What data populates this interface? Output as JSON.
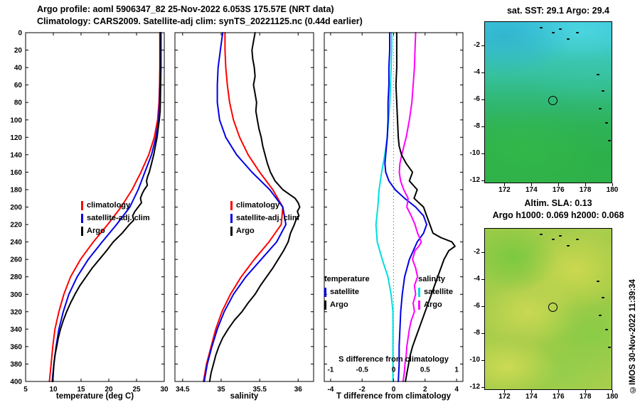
{
  "header": {
    "line1": "Argo profile: aoml 5906347_82 25-Nov-2022 6.053S 175.57E (NRT data)",
    "line2": "Climatology: CARS2009. Satellite-adj clim: synTS_20221125.nc (0.44d earlier)"
  },
  "copyright": "©IMOS 30-Nov-2022 11:39:34",
  "colors": {
    "climatology": "#ff0000",
    "satellite": "#0000e6",
    "argo": "#000000",
    "s_satellite": "#00dede",
    "s_argo": "#ff00ff",
    "axis": "#000000",
    "sst_top": "#3fcbdd",
    "sst_bottom": "#2db04b",
    "sla_base": "#a3cc49"
  },
  "maps": {
    "sst": {
      "title": "sat. SST: 29.1 Argo: 29.4",
      "xlim": [
        170.5,
        180.0
      ],
      "ylim": [
        -0.2,
        -12.2
      ],
      "xticks": [
        "172",
        "174",
        "176",
        "178",
        "180"
      ],
      "yticks": [
        "-2",
        "-4",
        "-6",
        "-8",
        "-10",
        "-12"
      ],
      "marker": {
        "lon": 175.57,
        "lat": -6.053
      },
      "islands": [
        [
          0.43,
          0.03
        ],
        [
          0.52,
          0.06
        ],
        [
          0.58,
          0.04
        ],
        [
          0.64,
          0.1
        ],
        [
          0.71,
          0.06
        ],
        [
          0.87,
          0.32
        ],
        [
          0.91,
          0.42
        ],
        [
          0.89,
          0.53
        ],
        [
          0.94,
          0.62
        ],
        [
          0.96,
          0.73
        ]
      ]
    },
    "sla": {
      "title1": "Altim. SLA: 0.13",
      "title2": "Argo h1000: 0.069 h2000: 0.068",
      "xlim": [
        170.5,
        180.0
      ],
      "ylim": [
        -0.2,
        -12.2
      ],
      "xticks": [
        "172",
        "174",
        "176",
        "178",
        "180"
      ],
      "yticks": [
        "-2",
        "-4",
        "-6",
        "-8",
        "-10",
        "-12"
      ],
      "marker": {
        "lon": 175.57,
        "lat": -6.053
      },
      "islands": [
        [
          0.43,
          0.03
        ],
        [
          0.52,
          0.06
        ],
        [
          0.58,
          0.04
        ],
        [
          0.64,
          0.1
        ],
        [
          0.71,
          0.06
        ],
        [
          0.87,
          0.32
        ],
        [
          0.91,
          0.42
        ],
        [
          0.89,
          0.53
        ],
        [
          0.94,
          0.62
        ],
        [
          0.96,
          0.73
        ]
      ]
    }
  },
  "chart_data": [
    {
      "type": "line",
      "xlabel": "temperature (deg C)",
      "xlim": [
        5,
        30
      ],
      "ylim": [
        0,
        400
      ],
      "xticks": [
        5,
        10,
        15,
        20,
        25,
        30
      ],
      "xtick_labels": [
        "5",
        "10",
        "15",
        "20",
        "25",
        "30"
      ],
      "yticks": [
        0,
        20,
        40,
        60,
        80,
        100,
        120,
        140,
        160,
        180,
        200,
        220,
        240,
        260,
        280,
        300,
        320,
        340,
        360,
        380,
        400
      ],
      "show_ylabels": true,
      "legend": [
        "climatology",
        "satellite-adj. clim",
        "Argo"
      ],
      "series": [
        {
          "id": "climatology",
          "name": "climatology",
          "color_key": "climatology",
          "axis": "T",
          "depths": [
            0,
            20,
            40,
            60,
            80,
            100,
            120,
            140,
            160,
            180,
            200,
            220,
            240,
            260,
            280,
            300,
            320,
            340,
            360,
            380,
            400
          ],
          "values": [
            29.2,
            29.2,
            29.2,
            29.15,
            29.05,
            28.8,
            28.2,
            27.2,
            25.8,
            24.2,
            22.2,
            19.8,
            17.2,
            14.9,
            13.1,
            11.9,
            11.0,
            10.3,
            9.9,
            9.6,
            9.3
          ]
        },
        {
          "id": "satellite-adj-clim",
          "name": "satellite-adj. clim",
          "color_key": "satellite",
          "axis": "T",
          "depths": [
            0,
            20,
            40,
            60,
            80,
            100,
            120,
            140,
            160,
            180,
            200,
            220,
            240,
            260,
            280,
            300,
            320,
            340,
            360,
            380,
            400
          ],
          "values": [
            29.25,
            29.25,
            29.25,
            29.2,
            29.15,
            29.0,
            28.5,
            27.7,
            26.5,
            25.3,
            23.8,
            21.4,
            18.8,
            16.3,
            14.3,
            12.8,
            11.8,
            11.0,
            10.5,
            10.1,
            9.8
          ]
        },
        {
          "id": "argo",
          "name": "Argo",
          "color_key": "argo",
          "axis": "T",
          "depths": [
            0,
            20,
            40,
            60,
            80,
            90,
            100,
            110,
            120,
            130,
            140,
            150,
            160,
            165,
            170,
            175,
            180,
            185,
            190,
            195,
            200,
            205,
            210,
            215,
            220,
            230,
            240,
            250,
            260,
            270,
            280,
            290,
            300,
            310,
            320,
            330,
            340,
            350,
            360,
            370,
            380,
            390,
            400
          ],
          "values": [
            29.4,
            29.4,
            29.4,
            29.35,
            29.3,
            29.25,
            29.1,
            28.9,
            28.7,
            28.4,
            28.1,
            27.7,
            27.3,
            27.0,
            26.8,
            26.95,
            26.4,
            26.0,
            25.7,
            25.9,
            25.3,
            24.7,
            24.3,
            24.5,
            23.7,
            22.4,
            20.8,
            19.6,
            18.3,
            17.0,
            15.9,
            14.8,
            13.9,
            13.1,
            12.4,
            11.8,
            11.3,
            10.9,
            10.6,
            10.3,
            10.1,
            10.0,
            9.9
          ]
        }
      ]
    },
    {
      "type": "line",
      "xlabel": "salinity",
      "xlim": [
        34.4,
        36.2
      ],
      "ylim": [
        0,
        400
      ],
      "xticks": [
        34.5,
        35,
        35.5,
        36
      ],
      "xtick_labels": [
        "34.5",
        "35",
        "35.5",
        "36"
      ],
      "yticks": [
        0,
        20,
        40,
        60,
        80,
        100,
        120,
        140,
        160,
        180,
        200,
        220,
        240,
        260,
        280,
        300,
        320,
        340,
        360,
        380,
        400
      ],
      "show_ylabels": false,
      "legend": [
        "climatology",
        "satellite-adj. clim",
        "Argo"
      ],
      "series": [
        {
          "id": "climatology",
          "name": "climatology",
          "color_key": "climatology",
          "axis": "T",
          "depths": [
            0,
            20,
            40,
            60,
            80,
            100,
            120,
            140,
            160,
            180,
            200,
            220,
            240,
            260,
            280,
            300,
            320,
            340,
            360,
            380,
            400
          ],
          "values": [
            35.05,
            35.05,
            35.06,
            35.08,
            35.11,
            35.16,
            35.24,
            35.35,
            35.5,
            35.67,
            35.8,
            35.78,
            35.62,
            35.43,
            35.26,
            35.12,
            35.01,
            34.93,
            34.87,
            34.81,
            34.77
          ]
        },
        {
          "id": "satellite-adj-clim",
          "name": "satellite-adj. clim",
          "color_key": "satellite",
          "axis": "T",
          "depths": [
            0,
            20,
            40,
            60,
            80,
            100,
            120,
            140,
            160,
            180,
            200,
            220,
            240,
            260,
            280,
            300,
            320,
            340,
            360,
            380,
            400
          ],
          "values": [
            35.02,
            34.99,
            34.96,
            34.95,
            34.95,
            34.98,
            35.06,
            35.2,
            35.4,
            35.63,
            35.8,
            35.84,
            35.72,
            35.52,
            35.32,
            35.16,
            35.04,
            34.95,
            34.88,
            34.82,
            34.78
          ]
        },
        {
          "id": "argo",
          "name": "Argo",
          "color_key": "argo",
          "axis": "T",
          "depths": [
            0,
            10,
            20,
            30,
            40,
            50,
            60,
            70,
            80,
            90,
            100,
            110,
            120,
            130,
            140,
            150,
            160,
            170,
            180,
            185,
            190,
            195,
            200,
            205,
            210,
            215,
            220,
            230,
            240,
            250,
            260,
            270,
            280,
            290,
            300,
            310,
            320,
            330,
            340,
            350,
            360,
            370,
            380,
            390,
            400
          ],
          "values": [
            35.44,
            35.42,
            35.4,
            35.41,
            35.43,
            35.44,
            35.42,
            35.44,
            35.46,
            35.45,
            35.47,
            35.49,
            35.52,
            35.54,
            35.57,
            35.6,
            35.64,
            35.7,
            35.8,
            35.88,
            35.96,
            36.0,
            36.02,
            35.99,
            36.01,
            35.97,
            35.95,
            35.9,
            35.87,
            35.81,
            35.74,
            35.67,
            35.59,
            35.51,
            35.44,
            35.35,
            35.27,
            35.17,
            35.09,
            35.02,
            34.97,
            34.93,
            34.9,
            34.87,
            34.85
          ]
        }
      ]
    },
    {
      "type": "line",
      "xlabel": "T difference from climatology",
      "xlim": [
        -4.4,
        4.4
      ],
      "ylim": [
        0,
        400
      ],
      "xticks": [
        -4,
        -2,
        0,
        2,
        4
      ],
      "xtick_labels": [
        "-4",
        "-2",
        "0",
        "2",
        "4"
      ],
      "yticks": [
        0,
        20,
        40,
        60,
        80,
        100,
        120,
        140,
        160,
        180,
        200,
        220,
        240,
        260,
        280,
        300,
        320,
        340,
        360,
        380,
        400
      ],
      "show_ylabels": false,
      "zero_line": true,
      "s_axis": {
        "label": "S difference from climatology",
        "ticks": [
          -1,
          -0.5,
          0,
          0.5,
          1
        ],
        "tick_labels": [
          "-1",
          "-0.5",
          "0",
          "0.5",
          "1"
        ],
        "scale": 4
      },
      "legend_temperature": {
        "title": "temperature",
        "satellite": "satellite",
        "argo": "Argo"
      },
      "legend_salinity": {
        "title": "salinity",
        "satellite": "satellite",
        "argo": "Argo"
      },
      "series": [
        {
          "id": "s-diff-satellite",
          "name": "S satellite",
          "color_key": "s_satellite",
          "axis": "S",
          "depths": [
            0,
            20,
            40,
            60,
            80,
            100,
            120,
            140,
            160,
            180,
            200,
            220,
            240,
            260,
            280,
            300,
            320,
            340,
            360,
            380,
            400
          ],
          "values": [
            -0.03,
            -0.03,
            -0.04,
            -0.05,
            -0.06,
            -0.08,
            -0.1,
            -0.14,
            -0.19,
            -0.23,
            -0.25,
            -0.28,
            -0.26,
            -0.18,
            -0.09,
            -0.04,
            -0.01,
            -0.01,
            -0.01,
            -0.01,
            -0.01
          ]
        },
        {
          "id": "t-diff-satellite",
          "name": "T satellite",
          "color_key": "satellite",
          "axis": "T",
          "depths": [
            0,
            20,
            40,
            60,
            80,
            100,
            120,
            140,
            150,
            160,
            170,
            180,
            190,
            200,
            210,
            220,
            230,
            240,
            260,
            280,
            300,
            320,
            340,
            360,
            380,
            400
          ],
          "values": [
            -0.25,
            -0.25,
            -0.3,
            -0.3,
            -0.35,
            -0.35,
            -0.4,
            -0.5,
            -0.55,
            -0.5,
            -0.3,
            0.1,
            0.7,
            1.4,
            1.9,
            2.1,
            1.9,
            1.5,
            1.0,
            0.7,
            0.55,
            0.45,
            0.4,
            0.35,
            0.35,
            0.3
          ]
        },
        {
          "id": "s-diff-argo",
          "name": "S Argo",
          "color_key": "s_argo",
          "axis": "S",
          "depths": [
            0,
            20,
            40,
            60,
            80,
            100,
            120,
            140,
            150,
            160,
            170,
            180,
            190,
            200,
            210,
            220,
            230,
            240,
            245,
            250,
            260,
            270,
            280,
            290,
            300,
            310,
            320,
            330,
            340,
            350,
            360,
            370,
            380,
            390,
            400
          ],
          "values": [
            0.35,
            0.34,
            0.33,
            0.31,
            0.29,
            0.25,
            0.2,
            0.13,
            0.1,
            0.09,
            0.11,
            0.16,
            0.23,
            0.21,
            0.28,
            0.34,
            0.38,
            0.44,
            0.4,
            0.34,
            0.3,
            0.35,
            0.38,
            0.33,
            0.35,
            0.31,
            0.33,
            0.28,
            0.25,
            0.23,
            0.21,
            0.2,
            0.18,
            0.17,
            0.15
          ]
        },
        {
          "id": "t-diff-argo",
          "name": "T Argo",
          "color_key": "argo",
          "axis": "T",
          "depths": [
            0,
            20,
            40,
            60,
            80,
            100,
            120,
            130,
            140,
            150,
            160,
            170,
            180,
            190,
            200,
            210,
            220,
            230,
            235,
            240,
            245,
            250,
            260,
            270,
            280,
            290,
            300,
            310,
            320,
            330,
            340,
            350,
            360,
            370,
            380,
            390,
            400
          ],
          "values": [
            0.2,
            0.2,
            0.2,
            0.15,
            0.2,
            0.25,
            0.3,
            0.35,
            0.5,
            0.8,
            1.2,
            1.0,
            1.5,
            1.3,
            1.9,
            2.1,
            2.3,
            2.5,
            3.0,
            3.7,
            3.9,
            3.5,
            3.2,
            3.0,
            2.8,
            2.6,
            2.4,
            2.2,
            2.0,
            1.8,
            1.6,
            1.4,
            1.2,
            1.05,
            0.95,
            0.85,
            0.75
          ]
        }
      ]
    }
  ]
}
